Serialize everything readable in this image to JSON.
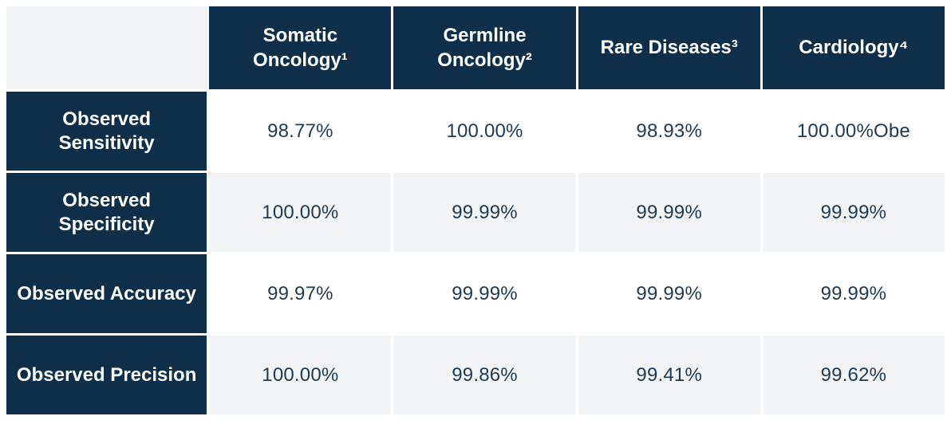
{
  "chart_data": {
    "type": "table",
    "title": "",
    "corner_label": "",
    "columns": [
      "Somatic Oncology¹",
      "Germline Oncology²",
      "Rare Diseases³",
      "Cardiology⁴"
    ],
    "rows": [
      {
        "label": "Observed Sensitivity",
        "values": [
          "98.77%",
          "100.00%",
          "98.93%",
          "100.00%Obe"
        ]
      },
      {
        "label": "Observed Specificity",
        "values": [
          "100.00%",
          "99.99%",
          "99.99%",
          "99.99%"
        ]
      },
      {
        "label": "Observed Accuracy",
        "values": [
          "99.97%",
          "99.99%",
          "99.99%",
          "99.99%"
        ]
      },
      {
        "label": "Observed Precision",
        "values": [
          "100.00%",
          "99.86%",
          "99.41%",
          "99.62%"
        ]
      }
    ]
  },
  "colors": {
    "header_bg": "#0e2f4a",
    "header_text": "#ffffff",
    "row_white": "#ffffff",
    "row_gray": "#f2f4f5",
    "value_text": "#1d3a53",
    "divider": "#ffffff"
  }
}
